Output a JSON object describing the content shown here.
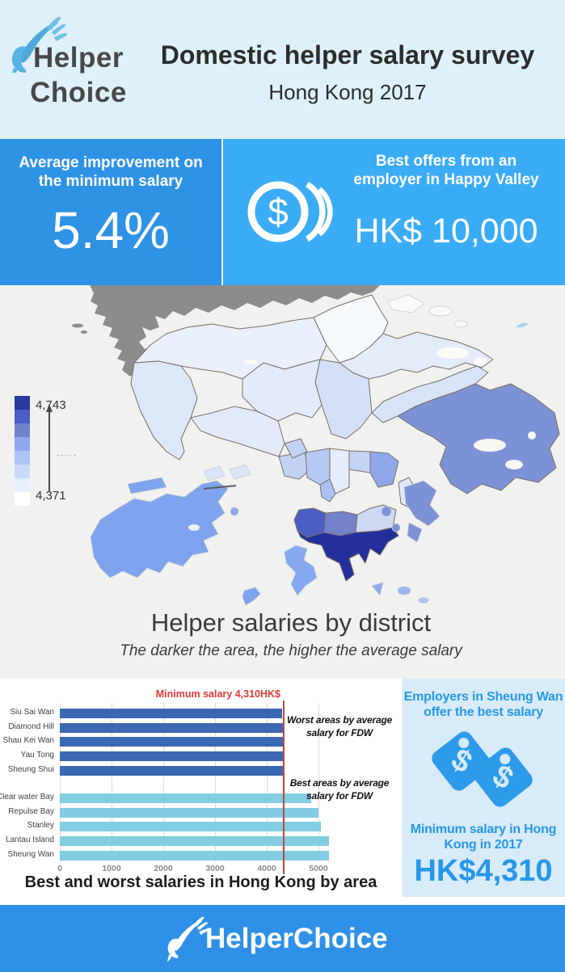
{
  "header": {
    "logo_line1": "Helper",
    "logo_line2": "Choice",
    "title": "Domestic helper salary survey",
    "subtitle": "Hong Kong 2017"
  },
  "stats": {
    "left": {
      "label_line1": "Average improvement on",
      "label_line2": "the minimum salary",
      "value": "5.4%",
      "bg": "#2E92E5"
    },
    "right": {
      "label_line1": "Best offers from an",
      "label_line2": "employer in Happy Valley",
      "value": "HK$ 10,000",
      "bg": "#3AACF6",
      "icon": "coin-dollar-icon"
    }
  },
  "map": {
    "caption": "Helper salaries by district",
    "subcaption": "The darker the area, the higher the average salary",
    "legend": {
      "max_label": "4,743",
      "min_label": "4,371",
      "colors": [
        "#2B3A9D",
        "#4A5EC6",
        "#7082CB",
        "#8FA8EF",
        "#AEC6F5",
        "#C9D9F8",
        "#E7EEFC",
        "#FFFFFF"
      ]
    },
    "sea_color": "#F1F1EF",
    "mainland_color": "#8C8C8C"
  },
  "chart_data": [
    {
      "type": "bar",
      "orientation": "horizontal",
      "title": "Best and worst salaries in Hong Kong by area",
      "categories": [
        "Siu Sai Wan",
        "Diamond Hill",
        "Shau Kei Wan",
        "Yau Tong",
        "Sheung Shui",
        "Clear water Bay",
        "Repulse Bay",
        "Stanley",
        "Lantau Island",
        "Sheung Wan"
      ],
      "values": [
        4290,
        4320,
        4340,
        4330,
        4325,
        4860,
        5000,
        5040,
        5200,
        5210
      ],
      "groups": [
        {
          "name": "Worst areas by average salary for FDW",
          "indices": [
            0,
            4
          ],
          "color": "#3B69B1"
        },
        {
          "name": "Best areas by average salary for FDW",
          "indices": [
            5,
            9
          ],
          "color": "#82CDE1"
        }
      ],
      "annotations": [
        {
          "line1": "Worst areas by average",
          "line2": "salary for FDW"
        },
        {
          "line1": "Best areas by average",
          "line2": "salary for FDW"
        }
      ],
      "xticks": [
        0,
        1000,
        2000,
        3000,
        4000,
        5000
      ],
      "xlim": [
        0,
        5500
      ],
      "reference_line": {
        "value": 4310,
        "label": "Minimum salary 4,310HK$",
        "color": "#BE4743"
      }
    },
    {
      "type": "choropleth",
      "region": "Hong Kong districts",
      "title": "Helper salaries by district",
      "subtitle": "The darker the area, the higher the average salary",
      "value_range": [
        4371,
        4743
      ],
      "legend_labels": [
        "4,371",
        "4,743"
      ]
    }
  ],
  "side_panel": {
    "heading_line1": "Employers in Sheung Wan",
    "heading_line2": "offer the best salary",
    "sub_line1": "Minimum salary in Hong",
    "sub_line2": "Kong in 2017",
    "value": "HK$4,310",
    "accent": "#2697E9"
  },
  "footer": {
    "brand": "HelperChoice"
  }
}
